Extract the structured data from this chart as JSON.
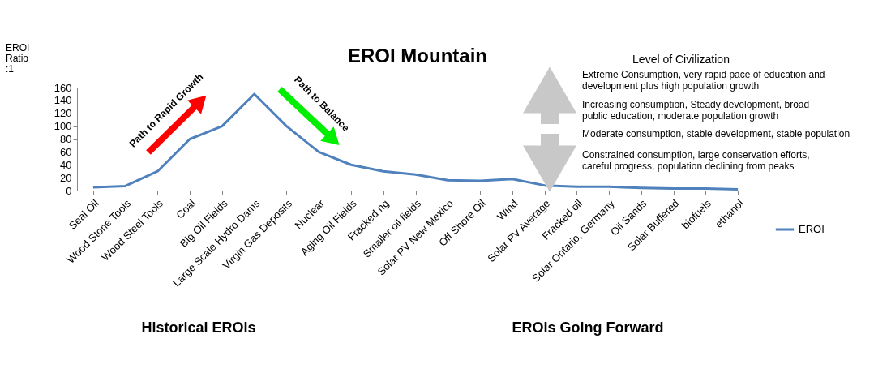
{
  "chart_data": {
    "type": "line",
    "title": "EROI Mountain",
    "ylabel": "EROI Ratio :1",
    "categories": [
      "Seal Oil",
      "Wood Stone Tools",
      "Wood Steel Tools",
      "Coal",
      "Big Oil Fields",
      "Large Scale Hydro Dams",
      "Virgin Gas Deposits",
      "Nuclear",
      "Aging Oil Fields",
      "Fracked ng",
      "Smaller oil fields",
      "Solar PV New Mexico",
      "Off Shore Oil",
      "Wind",
      "Solar PV Average",
      "Fracked oil",
      "Solar Ontario, Germany",
      "Oil Sands",
      "Solar Buffered",
      "biofuels",
      "ethanol"
    ],
    "series": [
      {
        "name": "EROI",
        "color": "#4f81bd",
        "values": [
          5,
          7,
          30,
          80,
          100,
          150,
          100,
          60,
          40,
          30,
          25,
          16,
          15,
          18,
          8,
          6,
          6,
          4,
          3,
          3,
          2
        ]
      }
    ],
    "ylim": [
      0,
      160
    ],
    "yticks": [
      0,
      20,
      40,
      60,
      80,
      100,
      120,
      140,
      160
    ],
    "grid": false,
    "legend": "right",
    "marker": "none",
    "line_style": "solid",
    "annotations": [
      "Path to Rapid Growth",
      "Path to Balance",
      "Level of Civilization",
      "Extreme Consumption, very rapid pace of education and development plus high population growth",
      "Increasing consumption, Steady development, broad public education, moderate population growth",
      "Moderate consumption, stable development, stable population",
      "Constrained consumption, large conservation efforts, careful progress, population declining from peaks",
      "Historical EROIs",
      "EROIs Going Forward"
    ]
  }
}
